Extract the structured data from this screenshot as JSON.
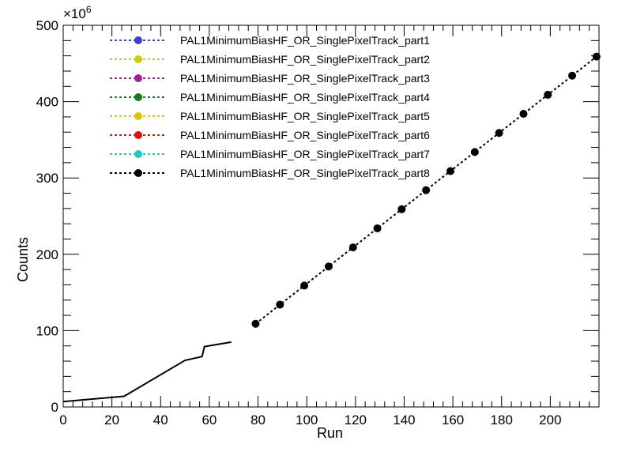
{
  "chart_data": {
    "type": "line",
    "title": "",
    "xlabel": "Run",
    "ylabel": "Counts",
    "y_multiplier_label": "×10",
    "y_multiplier_exponent": "6",
    "xlim": [
      0,
      220
    ],
    "ylim": [
      0,
      500
    ],
    "x_ticks": [
      0,
      20,
      40,
      60,
      80,
      100,
      120,
      140,
      160,
      180,
      200
    ],
    "y_ticks": [
      0,
      100,
      200,
      300,
      400,
      500
    ],
    "grid": false,
    "legend_position": "top-left",
    "legend": [
      {
        "name": "PAL1MinimumBiasHF_OR_SinglePixelTrack_part1",
        "color": "#3f3fd0"
      },
      {
        "name": "PAL1MinimumBiasHF_OR_SinglePixelTrack_part2",
        "color": "#cccc00"
      },
      {
        "name": "PAL1MinimumBiasHF_OR_SinglePixelTrack_part3",
        "color": "#a020a0"
      },
      {
        "name": "PAL1MinimumBiasHF_OR_SinglePixelTrack_part4",
        "color": "#1a7a1a"
      },
      {
        "name": "PAL1MinimumBiasHF_OR_SinglePixelTrack_part5",
        "color": "#e8c000"
      },
      {
        "name": "PAL1MinimumBiasHF_OR_SinglePixelTrack_part6",
        "color": "#e01010"
      },
      {
        "name": "PAL1MinimumBiasHF_OR_SinglePixelTrack_part7",
        "color": "#20c8c8"
      },
      {
        "name": "PAL1MinimumBiasHF_OR_SinglePixelTrack_part8",
        "color": "#000000"
      }
    ],
    "solid_line": {
      "color": "#000000",
      "x": [
        0,
        25,
        50,
        57,
        58,
        69
      ],
      "y": [
        7,
        14,
        61,
        66,
        79,
        85
      ]
    },
    "marker_series": {
      "color": "#000000",
      "x": [
        79,
        89,
        99,
        109,
        119,
        129,
        139,
        149,
        159,
        169,
        179,
        189,
        199,
        209,
        219
      ],
      "y": [
        109,
        134,
        159,
        184,
        209,
        234,
        259,
        284,
        309,
        334,
        359,
        384,
        409,
        434,
        459
      ]
    }
  }
}
